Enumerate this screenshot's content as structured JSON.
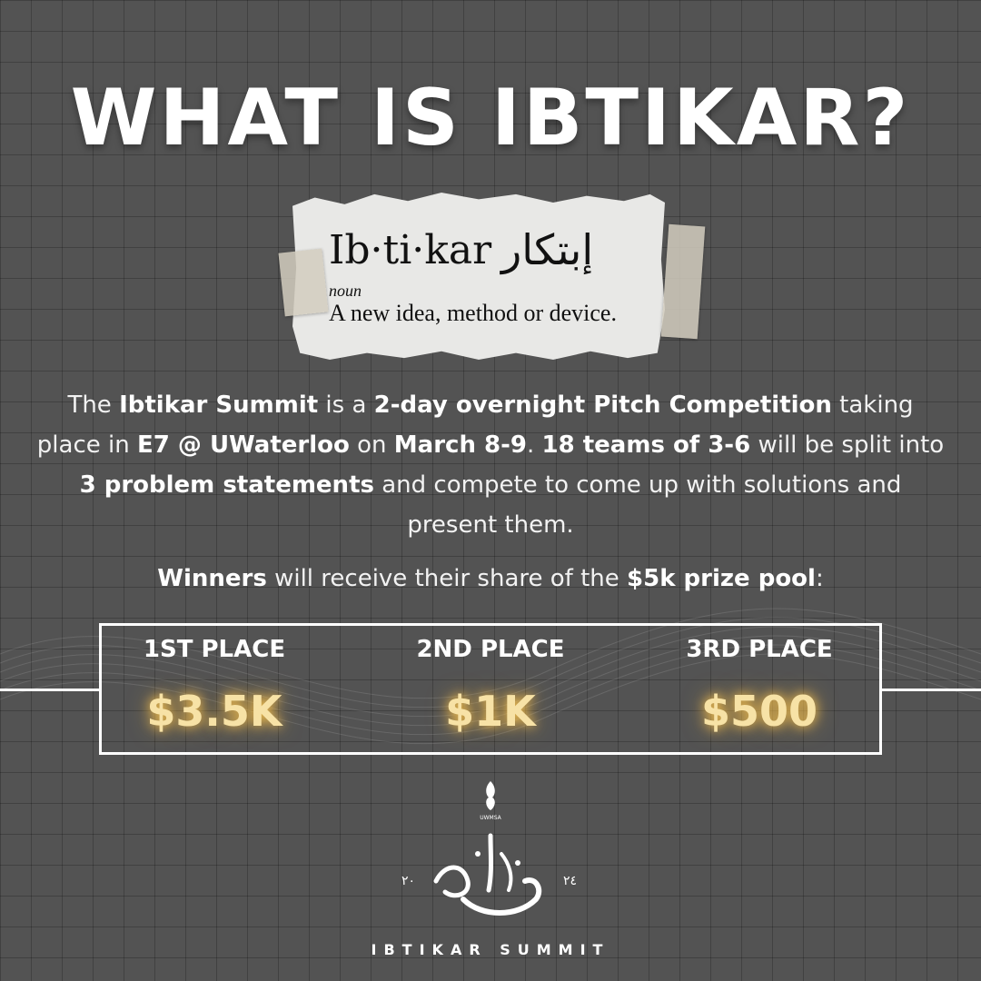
{
  "title": "WHAT IS IBTIKAR?",
  "definition": {
    "word": "Ib·ti·kar",
    "arabic": "إبتكار",
    "part_of_speech": "noun",
    "meaning": "A new idea, method or device."
  },
  "description": {
    "p1": "The ",
    "b1": "Ibtikar Summit",
    "p2": " is a ",
    "b2": "2-day overnight Pitch Competition",
    "p3": " taking place in ",
    "b3": "E7 @ UWaterloo",
    "p4": " on ",
    "b4": "March 8-9",
    "p5": ". ",
    "b5": "18 teams of 3-6",
    "p6": " will be split into ",
    "b6": "3 problem statements",
    "p7": " and compete to come up with solutions and present them."
  },
  "winners": {
    "b1": "Winners",
    "p1": " will receive their share of the ",
    "b2": "$5k prize pool",
    "p2": ":"
  },
  "prizes": [
    {
      "place": "1ST PLACE",
      "amount": "$3.5K"
    },
    {
      "place": "2ND PLACE",
      "amount": "$1K"
    },
    {
      "place": "3RD PLACE",
      "amount": "$500"
    }
  ],
  "logo": {
    "small_text": "UWMSA",
    "year_left": "٢٠",
    "year_right": "٢٤",
    "brand": "IBTIKAR SUMMIT"
  },
  "colors": {
    "background": "#535353",
    "glow": "#f7e2a6"
  }
}
